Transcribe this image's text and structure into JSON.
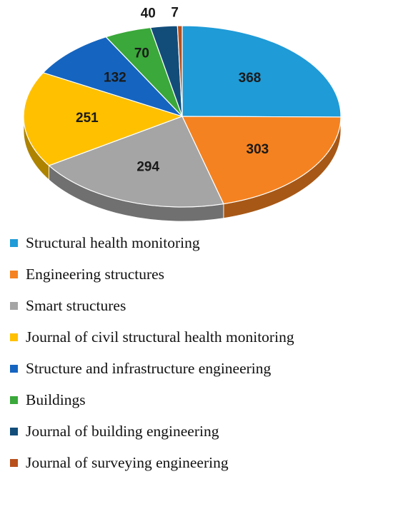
{
  "chart_data": {
    "type": "pie",
    "style": "3d",
    "title": "",
    "categories": [
      "Structural health monitoring",
      "Engineering structures",
      "Smart structures",
      "Journal of civil structural health monitoring",
      "Structure and infrastructure engineering",
      "Buildings",
      "Journal of building engineering",
      "Journal of surveying engineering"
    ],
    "values": [
      368,
      303,
      294,
      251,
      132,
      70,
      40,
      7
    ],
    "colors": [
      "#1f9bd7",
      "#f58220",
      "#a5a5a5",
      "#ffc000",
      "#1565c0",
      "#3aa83a",
      "#124d7a",
      "#b8501c"
    ],
    "legend_position": "bottom"
  }
}
